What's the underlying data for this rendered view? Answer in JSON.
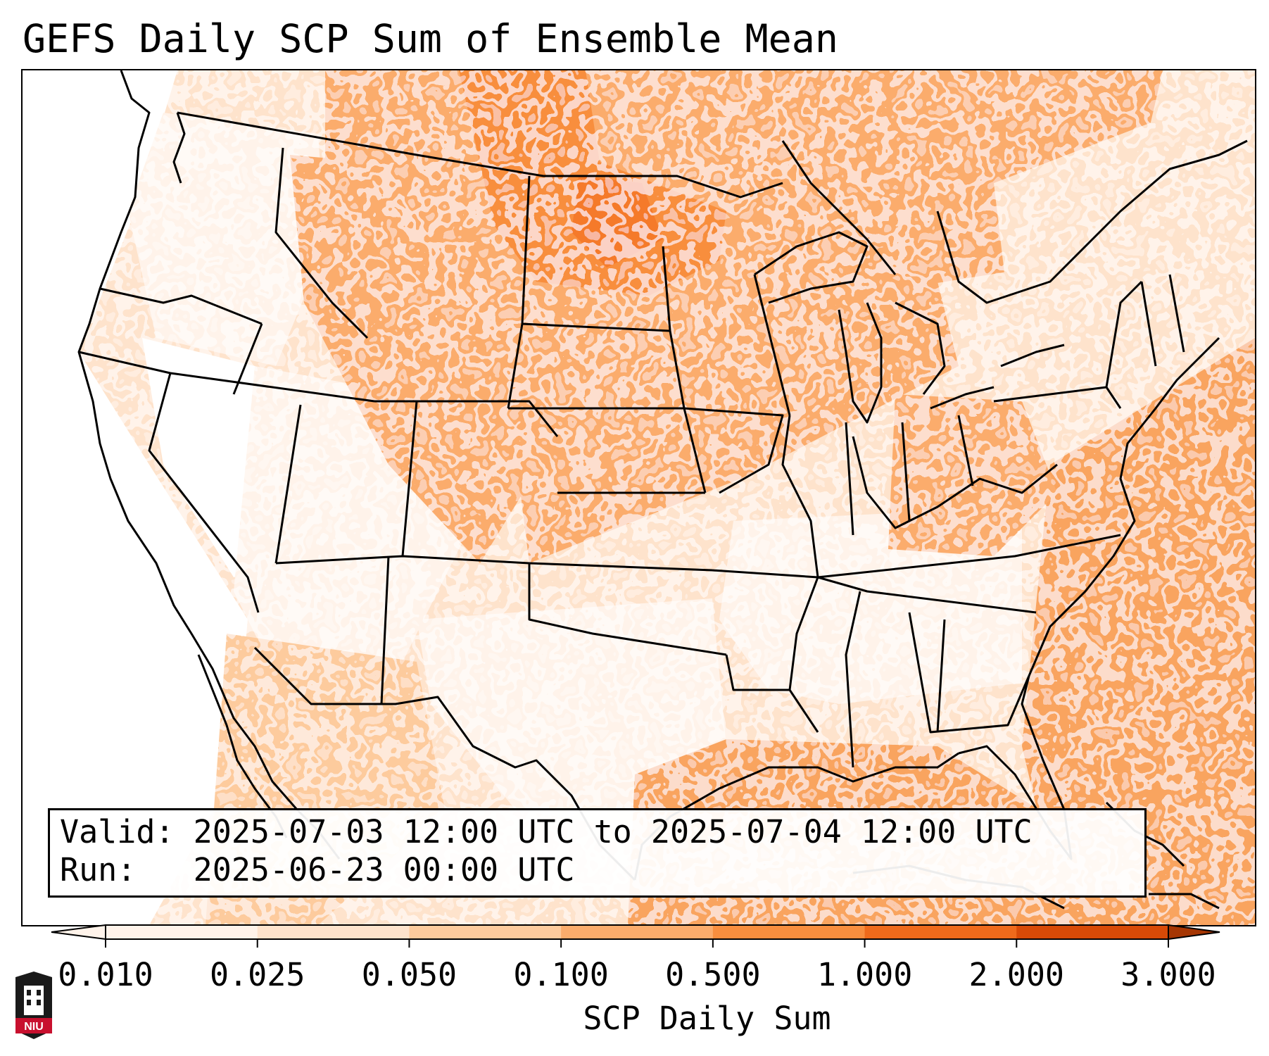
{
  "title": "GEFS Daily SCP Sum of Ensemble Mean",
  "info": {
    "valid_label": "Valid:",
    "valid_value": "2025-07-03 12:00 UTC to 2025-07-04 12:00 UTC",
    "run_label": "Run:",
    "run_value": "2025-06-23 00:00 UTC"
  },
  "colorbar": {
    "label": "SCP Daily Sum",
    "ticks": [
      "0.010",
      "0.025",
      "0.050",
      "0.100",
      "0.500",
      "1.000",
      "2.000",
      "3.000"
    ],
    "colors": [
      "#fff3ea",
      "#fee3cc",
      "#fdcb9d",
      "#fbac6c",
      "#f88e3e",
      "#ef6a1b",
      "#d84a07",
      "#a63603"
    ],
    "extend": "both"
  },
  "logo": {
    "name": "NIU",
    "text": "NIU",
    "color": "#c8102e"
  },
  "map": {
    "region": "Continental United States",
    "projection": "Lambert Conformal",
    "colors": {
      "ocean_atlantic": "#f9a45f",
      "gulf": "#f9a45f",
      "northern_plains_max": "#f6853b",
      "west_low": "#ffffff"
    }
  }
}
